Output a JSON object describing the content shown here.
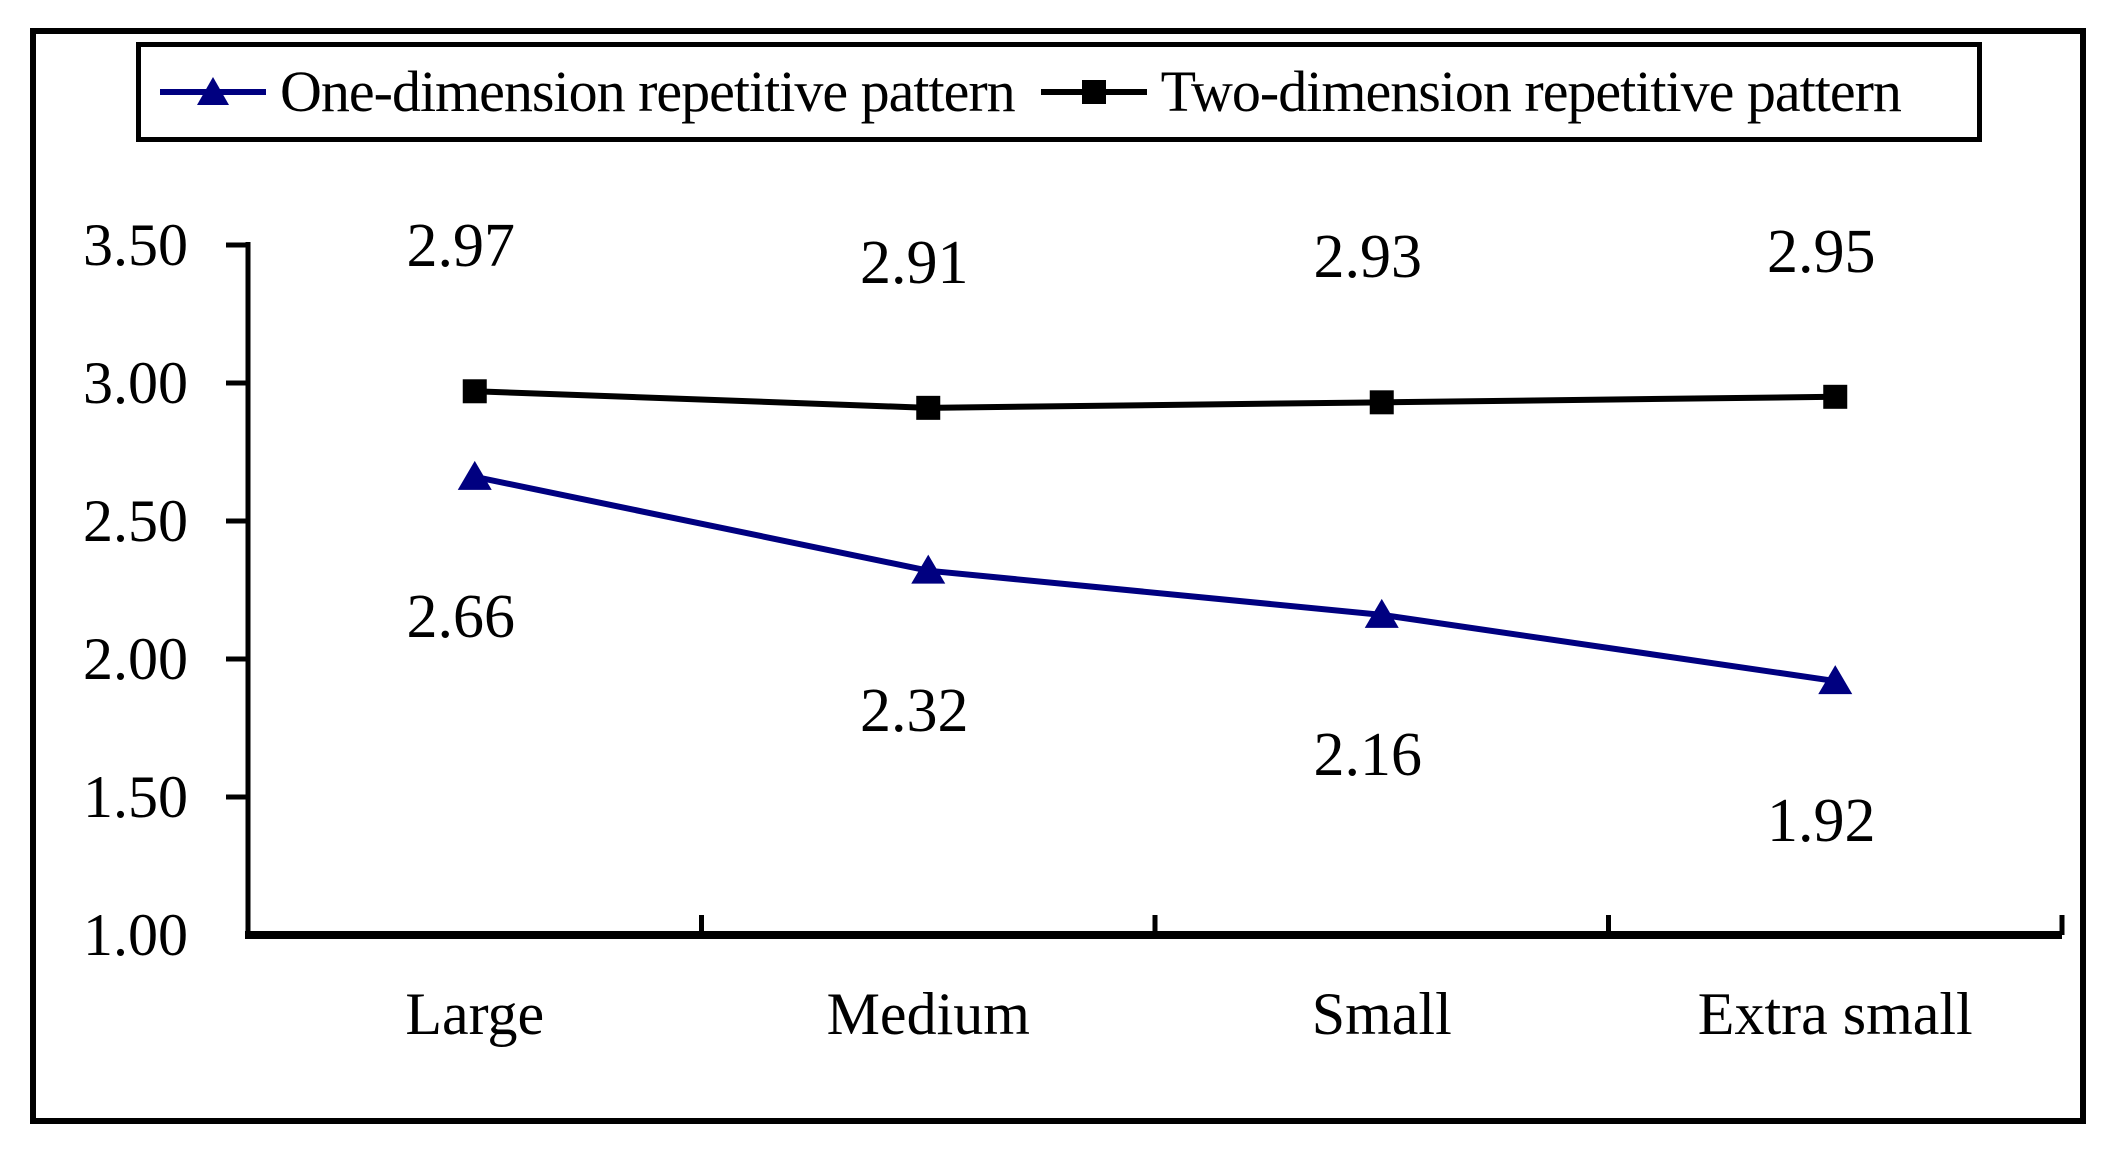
{
  "figure": {
    "background_color": "#ffffff",
    "border_color": "#000000"
  },
  "legend": {
    "items": [
      {
        "id": "one-dimension",
        "label": "One-dimension repetitive pattern",
        "color": "#000080",
        "marker": "triangle"
      },
      {
        "id": "two-dimension",
        "label": "Two-dimension repetitive pattern",
        "color": "#000000",
        "marker": "square"
      }
    ]
  },
  "chart_data": {
    "type": "line",
    "categories": [
      "Large",
      "Medium",
      "Small",
      "Extra small"
    ],
    "series": [
      {
        "id": "one-dimension",
        "name": "One-dimension repetitive pattern",
        "marker": "triangle",
        "color": "#000080",
        "values": [
          2.66,
          2.32,
          2.16,
          1.92
        ],
        "labels": [
          "2.66",
          "2.32",
          "2.16",
          "1.92"
        ],
        "label_position": "below"
      },
      {
        "id": "two-dimension",
        "name": "Two-dimension repetitive pattern",
        "marker": "square",
        "color": "#000000",
        "values": [
          2.97,
          2.91,
          2.93,
          2.95
        ],
        "labels": [
          "2.97",
          "2.91",
          "2.93",
          "2.95"
        ],
        "label_position": "above"
      }
    ],
    "ylim": [
      1.0,
      3.5
    ],
    "ytick_step": 0.5,
    "yticks": [
      "3.50",
      "3.00",
      "2.50",
      "2.00",
      "1.50",
      "1.00"
    ],
    "grid": false,
    "legend_position": "top",
    "axis_color": "#000000"
  }
}
